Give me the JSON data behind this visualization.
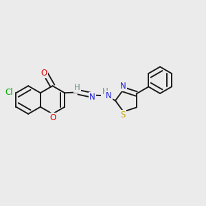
{
  "bg_color": "#ebebeb",
  "bond_color": "#1a1a1a",
  "atom_colors": {
    "O": "#e00000",
    "N": "#2020e0",
    "S": "#c8a800",
    "Cl": "#00aa00",
    "H": "#6a9090",
    "C": "#1a1a1a"
  },
  "line_width": 1.4,
  "font_size": 8.5,
  "double_sep": 0.011
}
